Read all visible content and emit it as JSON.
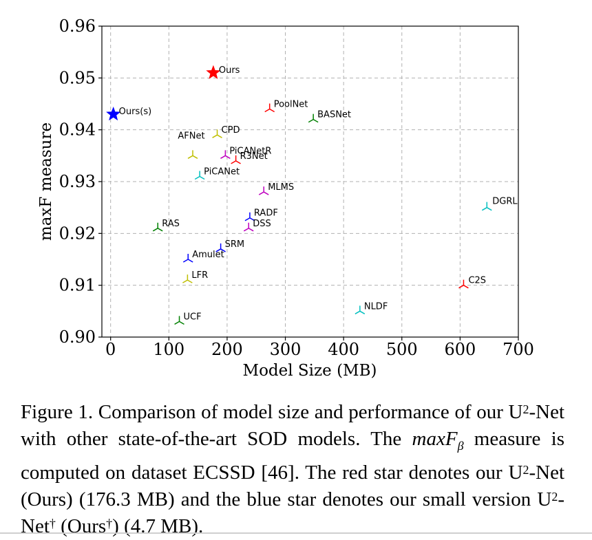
{
  "chart_data": {
    "type": "scatter",
    "xlabel": "Model Size (MB)",
    "ylabel": "maxF measure",
    "xlim": [
      -15,
      700
    ],
    "ylim": [
      0.9,
      0.96
    ],
    "xticks": [
      0,
      100,
      200,
      300,
      400,
      500,
      600,
      700
    ],
    "yticks": [
      "0.90",
      "0.91",
      "0.92",
      "0.93",
      "0.94",
      "0.95",
      "0.96"
    ],
    "grid": true,
    "points": [
      {
        "label": "Ours",
        "x": 176.3,
        "y": 0.951,
        "marker": "star",
        "color": "#ff0000"
      },
      {
        "label": "Ours(s)",
        "x": 4.7,
        "y": 0.943,
        "marker": "star",
        "color": "#0000ff"
      },
      {
        "label": "PoolNet",
        "x": 273,
        "y": 0.944,
        "marker": "tri",
        "color": "#ff0000"
      },
      {
        "label": "BASNet",
        "x": 348,
        "y": 0.942,
        "marker": "tri",
        "color": "#008000"
      },
      {
        "label": "CPD",
        "x": 183,
        "y": 0.939,
        "marker": "tri",
        "color": "#bfbf00"
      },
      {
        "label": "AFNet",
        "x": 141,
        "y": 0.935,
        "marker": "tri",
        "color": "#bfbf00"
      },
      {
        "label": "PiCANetR",
        "x": 197,
        "y": 0.935,
        "marker": "tri",
        "color": "#bf00bf"
      },
      {
        "label": "R3Net",
        "x": 215,
        "y": 0.934,
        "marker": "tri",
        "color": "#ff0000"
      },
      {
        "label": "PiCANet",
        "x": 153,
        "y": 0.931,
        "marker": "tri",
        "color": "#00bfbf"
      },
      {
        "label": "MLMS",
        "x": 263,
        "y": 0.928,
        "marker": "tri",
        "color": "#bf00bf"
      },
      {
        "label": "DGRL",
        "x": 646,
        "y": 0.925,
        "marker": "tri",
        "color": "#00bfbf"
      },
      {
        "label": "RADF",
        "x": 239,
        "y": 0.923,
        "marker": "tri",
        "color": "#0000ff"
      },
      {
        "label": "DSS",
        "x": 237,
        "y": 0.921,
        "marker": "tri",
        "color": "#bf00bf"
      },
      {
        "label": "RAS",
        "x": 81,
        "y": 0.921,
        "marker": "tri",
        "color": "#008000"
      },
      {
        "label": "SRM",
        "x": 189,
        "y": 0.917,
        "marker": "tri",
        "color": "#0000ff"
      },
      {
        "label": "Amulet",
        "x": 133,
        "y": 0.915,
        "marker": "tri",
        "color": "#0000ff"
      },
      {
        "label": "LFR",
        "x": 132,
        "y": 0.911,
        "marker": "tri",
        "color": "#bfbf00"
      },
      {
        "label": "C2S",
        "x": 606,
        "y": 0.91,
        "marker": "tri",
        "color": "#ff0000"
      },
      {
        "label": "NLDF",
        "x": 428,
        "y": 0.905,
        "marker": "tri",
        "color": "#00bfbf"
      },
      {
        "label": "UCF",
        "x": 118,
        "y": 0.903,
        "marker": "tri",
        "color": "#008000"
      }
    ]
  },
  "caption": {
    "part1": "Figure 1.  Comparison of model size and performance of our U",
    "sup1": "2",
    "part2": "-Net with other state-of-the-art SOD models.  The ",
    "math_main": "maxF",
    "math_sub": "β",
    "part3": " measure is computed on dataset ECSSD [46]. The red star denotes our U",
    "sup2": "2",
    "part4": "-Net (Ours) (176.3 MB) and the blue star denotes our small version U",
    "sup3": "2",
    "part5": "-Net",
    "sup4": "†",
    "part6": " (Ours",
    "sup5": "†",
    "part7": ") (4.7 MB)."
  }
}
